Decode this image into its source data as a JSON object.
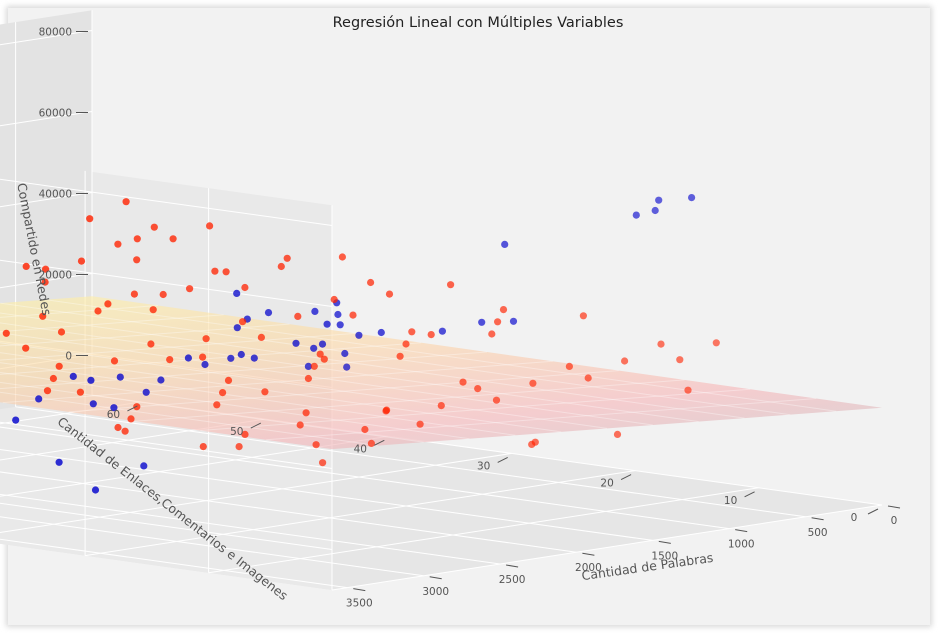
{
  "chart_data": {
    "type": "scatter",
    "projection": "3d",
    "title": "Regresión Lineal con Múltiples Variables",
    "xlabel": "Cantidad de Palabras",
    "ylabel": "Cantidad de Enlaces,Comentarios e Imagenes",
    "zlabel": "Compartido en Redes",
    "x_ticks": [
      "0",
      "500",
      "1000",
      "1500",
      "2000",
      "2500",
      "3000",
      "3500"
    ],
    "y_ticks": [
      "0",
      "10",
      "20",
      "30",
      "40",
      "50",
      "60"
    ],
    "z_ticks": [
      "0",
      "20000",
      "40000",
      "60000",
      "80000"
    ],
    "xlim": [
      0,
      3600
    ],
    "ylim": [
      0,
      64
    ],
    "zlim": [
      -10000,
      85000
    ],
    "regression_plane": {
      "intercept": 14000,
      "coef_x": 3,
      "coef_y": 6,
      "colormap": "yellow-to-pink"
    },
    "series": [
      {
        "color": "#0000cc",
        "points": [
          [
            3400,
            2,
            56000
          ],
          [
            3100,
            5,
            40000
          ],
          [
            2900,
            8,
            48000
          ],
          [
            2600,
            12,
            50000
          ],
          [
            2700,
            18,
            44000
          ],
          [
            2500,
            15,
            46000
          ],
          [
            2400,
            20,
            43000
          ],
          [
            3300,
            14,
            38000
          ],
          [
            2200,
            25,
            36000
          ],
          [
            1300,
            2,
            72000
          ],
          [
            1000,
            6,
            66000
          ],
          [
            800,
            10,
            62000
          ],
          [
            600,
            8,
            66000
          ],
          [
            1500,
            12,
            58000
          ],
          [
            1800,
            30,
            40000
          ],
          [
            400,
            40,
            20000
          ],
          [
            3500,
            30,
            22000
          ],
          [
            3300,
            45,
            9000
          ],
          [
            3000,
            50,
            6000
          ],
          [
            1600,
            40,
            -8000
          ],
          [
            2100,
            48,
            -15000
          ],
          [
            1400,
            55,
            -12000
          ],
          [
            700,
            58,
            -20000
          ],
          [
            300,
            60,
            -30000
          ],
          [
            2200,
            35,
            12000
          ],
          [
            2600,
            38,
            10000
          ],
          [
            1900,
            42,
            15000
          ],
          [
            1200,
            36,
            18000
          ],
          [
            2800,
            42,
            5000
          ],
          [
            3100,
            35,
            14000
          ],
          [
            1000,
            30,
            25000
          ],
          [
            2000,
            28,
            26000
          ],
          [
            2400,
            32,
            22000
          ],
          [
            1700,
            25,
            28000
          ],
          [
            2900,
            28,
            20000
          ],
          [
            600,
            25,
            28000
          ],
          [
            1200,
            15,
            36000
          ],
          [
            1500,
            22,
            32000
          ],
          [
            3400,
            50,
            5000
          ],
          [
            2500,
            45,
            8000
          ],
          [
            2000,
            52,
            4000
          ],
          [
            1300,
            48,
            8000
          ],
          [
            800,
            42,
            14000
          ],
          [
            500,
            50,
            8000
          ],
          [
            200,
            45,
            12000
          ],
          [
            3200,
            20,
            28000
          ],
          [
            2700,
            25,
            26000
          ],
          [
            2300,
            18,
            30000
          ],
          [
            1900,
            20,
            30000
          ],
          [
            1400,
            28,
            26000
          ],
          [
            1100,
            22,
            30000
          ],
          [
            3000,
            40,
            12000
          ],
          [
            2600,
            50,
            2000
          ],
          [
            1800,
            55,
            -2000
          ],
          [
            1200,
            58,
            -6000
          ],
          [
            3500,
            25,
            26000
          ]
        ]
      },
      {
        "color": "#ff2200",
        "points": [
          [
            3500,
            2,
            20000
          ],
          [
            3300,
            5,
            22000
          ],
          [
            3100,
            3,
            22000
          ],
          [
            2900,
            6,
            23000
          ],
          [
            2700,
            4,
            24000
          ],
          [
            3400,
            10,
            20000
          ],
          [
            3200,
            12,
            21000
          ],
          [
            3000,
            10,
            23000
          ],
          [
            2800,
            12,
            24000
          ],
          [
            2600,
            8,
            25000
          ],
          [
            2400,
            6,
            26000
          ],
          [
            2200,
            4,
            27000
          ],
          [
            2000,
            8,
            27000
          ],
          [
            1800,
            6,
            28000
          ],
          [
            1600,
            4,
            29000
          ],
          [
            1400,
            8,
            29000
          ],
          [
            1200,
            6,
            30000
          ],
          [
            1000,
            4,
            30000
          ],
          [
            800,
            8,
            31000
          ],
          [
            600,
            6,
            31000
          ],
          [
            3500,
            18,
            21000
          ],
          [
            3300,
            20,
            22000
          ],
          [
            3100,
            22,
            23000
          ],
          [
            2900,
            18,
            24000
          ],
          [
            2700,
            20,
            25000
          ],
          [
            2500,
            22,
            26000
          ],
          [
            2300,
            18,
            27000
          ],
          [
            2100,
            20,
            28000
          ],
          [
            1900,
            22,
            29000
          ],
          [
            1700,
            18,
            29000
          ],
          [
            1500,
            20,
            30000
          ],
          [
            1300,
            22,
            31000
          ],
          [
            1100,
            18,
            31000
          ],
          [
            900,
            20,
            32000
          ],
          [
            700,
            22,
            33000
          ],
          [
            500,
            18,
            32000
          ],
          [
            3400,
            30,
            24000
          ],
          [
            3200,
            28,
            25000
          ],
          [
            3000,
            30,
            26000
          ],
          [
            2800,
            32,
            27000
          ],
          [
            2600,
            30,
            28000
          ],
          [
            2400,
            28,
            28000
          ],
          [
            2200,
            32,
            29000
          ],
          [
            2000,
            30,
            30000
          ],
          [
            1800,
            28,
            30000
          ],
          [
            1600,
            32,
            31000
          ],
          [
            1400,
            30,
            32000
          ],
          [
            1200,
            28,
            32000
          ],
          [
            1000,
            32,
            33000
          ],
          [
            800,
            30,
            34000
          ],
          [
            600,
            34,
            34000
          ],
          [
            400,
            30,
            34000
          ],
          [
            3300,
            40,
            26000
          ],
          [
            3100,
            38,
            27000
          ],
          [
            2900,
            40,
            28000
          ],
          [
            2700,
            42,
            29000
          ],
          [
            2500,
            40,
            30000
          ],
          [
            2300,
            38,
            30000
          ],
          [
            2100,
            42,
            31000
          ],
          [
            1900,
            40,
            32000
          ],
          [
            1700,
            38,
            32000
          ],
          [
            1500,
            42,
            33000
          ],
          [
            1300,
            40,
            34000
          ],
          [
            1100,
            38,
            34000
          ],
          [
            900,
            42,
            35000
          ],
          [
            700,
            40,
            36000
          ],
          [
            500,
            42,
            36000
          ],
          [
            300,
            40,
            36000
          ],
          [
            3200,
            50,
            28000
          ],
          [
            3000,
            48,
            29000
          ],
          [
            2800,
            50,
            30000
          ],
          [
            2600,
            52,
            31000
          ],
          [
            2400,
            50,
            32000
          ],
          [
            2200,
            48,
            32000
          ],
          [
            2000,
            52,
            33000
          ],
          [
            1800,
            50,
            34000
          ],
          [
            1600,
            48,
            34000
          ],
          [
            1400,
            52,
            35000
          ],
          [
            1200,
            50,
            36000
          ],
          [
            1000,
            48,
            36000
          ],
          [
            800,
            52,
            37000
          ],
          [
            600,
            50,
            38000
          ],
          [
            400,
            54,
            38000
          ],
          [
            200,
            52,
            38000
          ],
          [
            2500,
            58,
            34000
          ],
          [
            2000,
            60,
            35000
          ],
          [
            1500,
            58,
            37000
          ],
          [
            1000,
            60,
            38000
          ],
          [
            500,
            58,
            39000
          ],
          [
            100,
            60,
            40000
          ],
          [
            2300,
            62,
            35000
          ],
          [
            1700,
            62,
            37000
          ],
          [
            2900,
            26,
            15000
          ],
          [
            2500,
            34,
            18000
          ],
          [
            2100,
            24,
            20000
          ],
          [
            1700,
            34,
            22000
          ],
          [
            1300,
            12,
            8000
          ],
          [
            1000,
            16,
            4000
          ],
          [
            600,
            14,
            5000
          ],
          [
            300,
            12,
            15000
          ],
          [
            3350,
            36,
            30000
          ],
          [
            3450,
            44,
            32000
          ],
          [
            1150,
            44,
            30000
          ],
          [
            850,
            26,
            26000
          ],
          [
            2750,
            46,
            20000
          ],
          [
            2350,
            56,
            26000
          ],
          [
            1950,
            16,
            18000
          ],
          [
            1550,
            26,
            24000
          ],
          [
            1350,
            46,
            28000
          ],
          [
            950,
            56,
            30000
          ],
          [
            650,
            46,
            32000
          ],
          [
            350,
            56,
            34000
          ],
          [
            3150,
            16,
            16000
          ],
          [
            2850,
            56,
            25000
          ],
          [
            2050,
            44,
            22000
          ],
          [
            1450,
            16,
            22000
          ]
        ]
      }
    ]
  }
}
